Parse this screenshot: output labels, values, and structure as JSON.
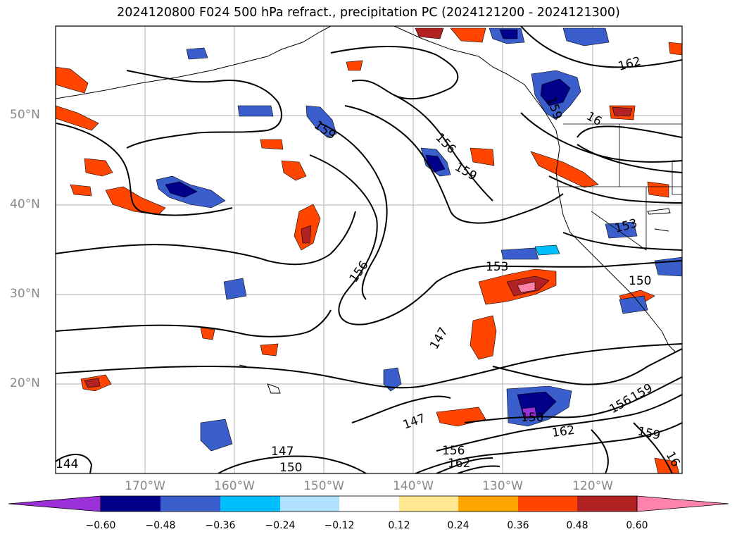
{
  "title": "2024120800 F024 500 hPa refract., precipitation PC (2024121200 - 2024121300)",
  "lat_labels": [
    "50°N",
    "40°N",
    "30°N",
    "20°N"
  ],
  "lon_labels": [
    "170°W",
    "160°W",
    "150°W",
    "140°W",
    "130°W",
    "120°W"
  ],
  "contour_labels": [
    "162",
    "159",
    "16",
    "159",
    "156",
    "159",
    "153",
    "156",
    "153",
    "150",
    "147",
    "147",
    "150",
    "156",
    "159",
    "162",
    "159",
    "16",
    "147",
    "150",
    "156",
    "162",
    "144"
  ],
  "colorbar": {
    "ticks": [
      "−0.60",
      "−0.48",
      "−0.36",
      "−0.24",
      "−0.12",
      "0.12",
      "0.24",
      "0.36",
      "0.48",
      "0.60"
    ],
    "colors": [
      "#9b30d9",
      "#00008b",
      "#3a5fcd",
      "#00bfff",
      "#b0e2ff",
      "#ffffff",
      "#ffe88f",
      "#ffa500",
      "#ff4500",
      "#b22222",
      "#ff82ab"
    ]
  },
  "map_extent": {
    "lon_min": -180,
    "lon_max": -110,
    "lat_min": 10,
    "lat_max": 60
  }
}
